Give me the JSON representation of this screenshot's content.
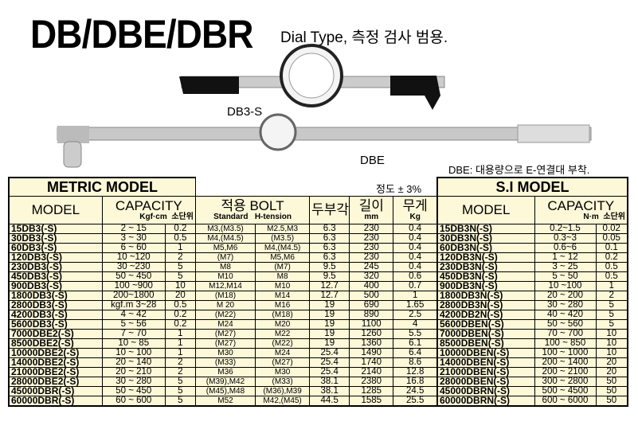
{
  "header": {
    "title": "DB/DBE/DBR",
    "subtitle": "Dial Type, 측정 검사 범용."
  },
  "products": {
    "db3s_label": "DB3-S",
    "dbe_label": "DBE",
    "note": "DBE: 대용량으로 E-연결대 부착.",
    "accuracy": "정도 ± 3%"
  },
  "metric": {
    "title": "METRIC MODEL",
    "h_model": "MODEL",
    "h_capacity": "CAPACITY",
    "h_cap_unit": "Kgf·cm",
    "h_min": "소단위",
    "h_bolt": "적용 BOLT",
    "h_std": "Standard",
    "h_ht": "H-tension",
    "h_head": "두부각",
    "h_len": "길이",
    "h_len_unit": "mm",
    "h_wt": "무게",
    "h_wt_unit": "Kg",
    "rows": [
      [
        "15DB3(-S)",
        "2 ~ 15",
        "0.2",
        "M3,(M3.5)",
        "M2.5,M3",
        "6.3",
        "230",
        "0.4"
      ],
      [
        "30DB3(-S)",
        "3 ~ 30",
        "0.5",
        "M4,(M4.5)",
        "(M3.5)",
        "6.3",
        "230",
        "0.4"
      ],
      [
        "60DB3(-S)",
        "6 ~ 60",
        "1",
        "M5,M6",
        "M4,(M4.5)",
        "6.3",
        "230",
        "0.4"
      ],
      [
        "120DB3(-S)",
        "10 ~120",
        "2",
        "(M7)",
        "M5,M6",
        "6.3",
        "230",
        "0.4"
      ],
      [
        "230DB3(-S)",
        "30 ~230",
        "5",
        "M8",
        "(M7)",
        "9.5",
        "245",
        "0.4"
      ],
      [
        "450DB3(-S)",
        "50 ~ 450",
        "5",
        "M10",
        "M8",
        "9.5",
        "320",
        "0.6"
      ],
      [
        "900DB3(-S)",
        "100 ~900",
        "10",
        "M12,M14",
        "M10",
        "12.7",
        "400",
        "0.7"
      ],
      [
        "1800DB3(-S)",
        "200~1800",
        "20",
        "(M18)",
        "M14",
        "12.7",
        "500",
        "1"
      ],
      [
        "2800DB3(-S)",
        "kgf.m 3~28",
        "0.5",
        "M 20",
        "M16",
        "19",
        "690",
        "1.65"
      ],
      [
        "4200DB3(-S)",
        "4 ~ 42",
        "0.2",
        "(M22)",
        "(M18)",
        "19",
        "890",
        "2.5"
      ],
      [
        "5600DB3(-S)",
        "5 ~ 56",
        "0.2",
        "M24",
        "M20",
        "19",
        "1100",
        "4"
      ],
      [
        "7000DBE2(-S)",
        "7 ~ 70",
        "1",
        "(M27)",
        "M22",
        "19",
        "1260",
        "5.5"
      ],
      [
        "8500DBE2(-S)",
        "10 ~ 85",
        "1",
        "(M27)",
        "(M22)",
        "19",
        "1360",
        "6.1"
      ],
      [
        "10000DBE2(-S)",
        "10 ~ 100",
        "1",
        "M30",
        "M24",
        "25.4",
        "1490",
        "6.4"
      ],
      [
        "14000DBE2(-S)",
        "20 ~ 140",
        "2",
        "(M33)",
        "(M27)",
        "25.4",
        "1740",
        "8.6"
      ],
      [
        "21000DBE2(-S)",
        "20 ~ 210",
        "2",
        "M36",
        "M30",
        "25.4",
        "2140",
        "12.8"
      ],
      [
        "28000DBE2(-S)",
        "30 ~ 280",
        "5",
        "(M39),M42",
        "(M33)",
        "38.1",
        "2380",
        "16.8"
      ],
      [
        "45000DBR(-S)",
        "50 ~ 450",
        "5",
        "(M45),M48",
        "(M36),M39",
        "38.1",
        "1285",
        "24.5"
      ],
      [
        "60000DBR(-S)",
        "60 ~ 600",
        "5",
        "M52",
        "M42,(M45)",
        "44.5",
        "1585",
        "25.5"
      ]
    ]
  },
  "si": {
    "title": "S.I MODEL",
    "h_model": "MODEL",
    "h_capacity": "CAPACITY",
    "h_cap_unit": "N·m",
    "h_min": "소단위",
    "rows": [
      [
        "15DB3N(-S)",
        "0.2~1.5",
        "0.02"
      ],
      [
        "30DB3N(-S)",
        "0.3~3",
        "0.05"
      ],
      [
        "60DB3N(-S)",
        "0.6~6",
        "0.1"
      ],
      [
        "120DB3N(-S)",
        "1 ~ 12",
        "0.2"
      ],
      [
        "230DB3N(-S)",
        "3 ~ 25",
        "0.5"
      ],
      [
        "450DB3N(-S)",
        "5 ~ 50",
        "0.5"
      ],
      [
        "900DB3N(-S)",
        "10 ~100",
        "1"
      ],
      [
        "1800DB3N(-S)",
        "20 ~ 200",
        "2"
      ],
      [
        "2800DB3N(-S)",
        "30 ~ 280",
        "5"
      ],
      [
        "4200DB2N(-S)",
        "40 ~ 420",
        "5"
      ],
      [
        "5600DBEN(-S)",
        "50 ~ 560",
        "5"
      ],
      [
        "7000DBEN(-S)",
        "70 ~ 700",
        "10"
      ],
      [
        "8500DBEN(-S)",
        "100 ~ 850",
        "10"
      ],
      [
        "10000DBEN(-S)",
        "100 ~ 1000",
        "10"
      ],
      [
        "14000DBEN(-S)",
        "200 ~ 1400",
        "20"
      ],
      [
        "21000DBEN(-S)",
        "200 ~ 2100",
        "20"
      ],
      [
        "28000DBEN(-S)",
        "300 ~ 2800",
        "50"
      ],
      [
        "45000DBRN(-S)",
        "500 ~ 4500",
        "50"
      ],
      [
        "60000DBRN(-S)",
        "600 ~ 6000",
        "50"
      ]
    ]
  }
}
